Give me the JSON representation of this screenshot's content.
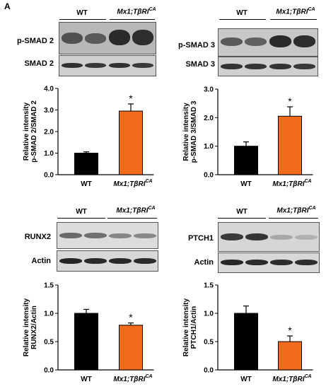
{
  "panel_letter": "A",
  "groups": {
    "wt": "WT",
    "mx_base": "Mx1;T",
    "mx_greek": "βRI",
    "mx_sup": "CA"
  },
  "blots": [
    {
      "rows": [
        {
          "label": "p-SMAD 2"
        },
        {
          "label": "SMAD 2"
        }
      ]
    },
    {
      "rows": [
        {
          "label": "p-SMAD 3"
        },
        {
          "label": "SMAD 3"
        }
      ]
    },
    {
      "rows": [
        {
          "label": "RUNX2"
        },
        {
          "label": "Actin"
        }
      ]
    },
    {
      "rows": [
        {
          "label": "PTCH1"
        },
        {
          "label": "Actin"
        }
      ]
    }
  ],
  "colors": {
    "wt_bar": "#000000",
    "mx_bar": "#f26a1b"
  },
  "chart_data": [
    {
      "type": "bar",
      "categories": [
        "WT",
        "Mx1;TβRICA"
      ],
      "values": [
        1.0,
        2.95
      ],
      "errors": [
        0.06,
        0.33
      ],
      "significance": [
        "",
        "*"
      ],
      "ylabel_lines": [
        "Relative intensity",
        "p-SMAD 2/SMAD 2"
      ],
      "ylim": [
        0,
        4.0
      ],
      "yticks": [
        "0.0",
        "1.0",
        "2.0",
        "3.0",
        "4.0"
      ]
    },
    {
      "type": "bar",
      "categories": [
        "WT",
        "Mx1;TβRICA"
      ],
      "values": [
        1.0,
        2.05
      ],
      "errors": [
        0.15,
        0.33
      ],
      "significance": [
        "",
        "*"
      ],
      "ylabel_lines": [
        "Relative intensity",
        "p-SMAD 3/SMAD 3"
      ],
      "ylim": [
        0,
        3.0
      ],
      "yticks": [
        "0.0",
        "1.0",
        "2.0",
        "3.0"
      ]
    },
    {
      "type": "bar",
      "categories": [
        "WT",
        "Mx1;TβRICA"
      ],
      "values": [
        1.0,
        0.79
      ],
      "errors": [
        0.07,
        0.04
      ],
      "significance": [
        "",
        "*"
      ],
      "ylabel_lines": [
        "Relative intensity",
        "RUNX2/Actin"
      ],
      "ylim": [
        0,
        1.5
      ],
      "yticks": [
        "0.0",
        "0.5",
        "1.0",
        "1.5"
      ]
    },
    {
      "type": "bar",
      "categories": [
        "WT",
        "Mx1;TβRICA"
      ],
      "values": [
        1.0,
        0.5
      ],
      "errors": [
        0.13,
        0.1
      ],
      "significance": [
        "",
        "*"
      ],
      "ylabel_lines": [
        "Relative intensity",
        "PTCH1/Actin"
      ],
      "ylim": [
        0,
        1.5
      ],
      "yticks": [
        "0.0",
        "0.5",
        "1.0",
        "1.5"
      ]
    }
  ]
}
